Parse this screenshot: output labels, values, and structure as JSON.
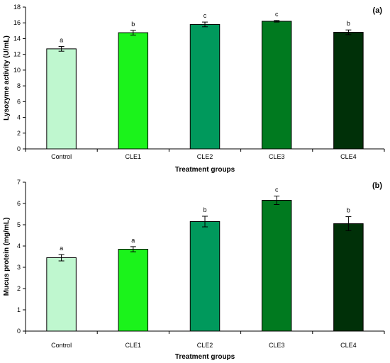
{
  "chart_data": [
    {
      "type": "bar",
      "panel_label": "(a)",
      "categories": [
        "Control",
        "CLE1",
        "CLE2",
        "CLE3",
        "CLE4"
      ],
      "values": [
        12.7,
        14.75,
        15.8,
        16.2,
        14.8
      ],
      "errors": [
        0.3,
        0.3,
        0.3,
        0.1,
        0.3
      ],
      "significance": [
        "a",
        "b",
        "c",
        "c",
        "b"
      ],
      "colors": [
        "#bff7cf",
        "#1bf31b",
        "#00995c",
        "#007a1f",
        "#003008"
      ],
      "xlabel": "Treatment groups",
      "ylabel": "Lysozyme activity (U/mL)",
      "ylim": [
        0,
        18
      ],
      "yticks": [
        0,
        2,
        4,
        6,
        8,
        10,
        12,
        14,
        16,
        18
      ],
      "grid": false
    },
    {
      "type": "bar",
      "panel_label": "(b)",
      "categories": [
        "Control",
        "CLE1",
        "CLE2",
        "CLE3",
        "CLE4"
      ],
      "values": [
        3.45,
        3.85,
        5.15,
        6.15,
        5.05
      ],
      "errors": [
        0.15,
        0.12,
        0.25,
        0.2,
        0.33
      ],
      "significance": [
        "a",
        "a",
        "b",
        "c",
        "b"
      ],
      "colors": [
        "#bff7cf",
        "#1bf31b",
        "#00995c",
        "#007a1f",
        "#003008"
      ],
      "xlabel": "Treatment groups",
      "ylabel": "Mucus protein (mg/mL)",
      "ylim": [
        0,
        7
      ],
      "yticks": [
        0,
        1,
        2,
        3,
        4,
        5,
        6,
        7
      ],
      "grid": false
    }
  ]
}
